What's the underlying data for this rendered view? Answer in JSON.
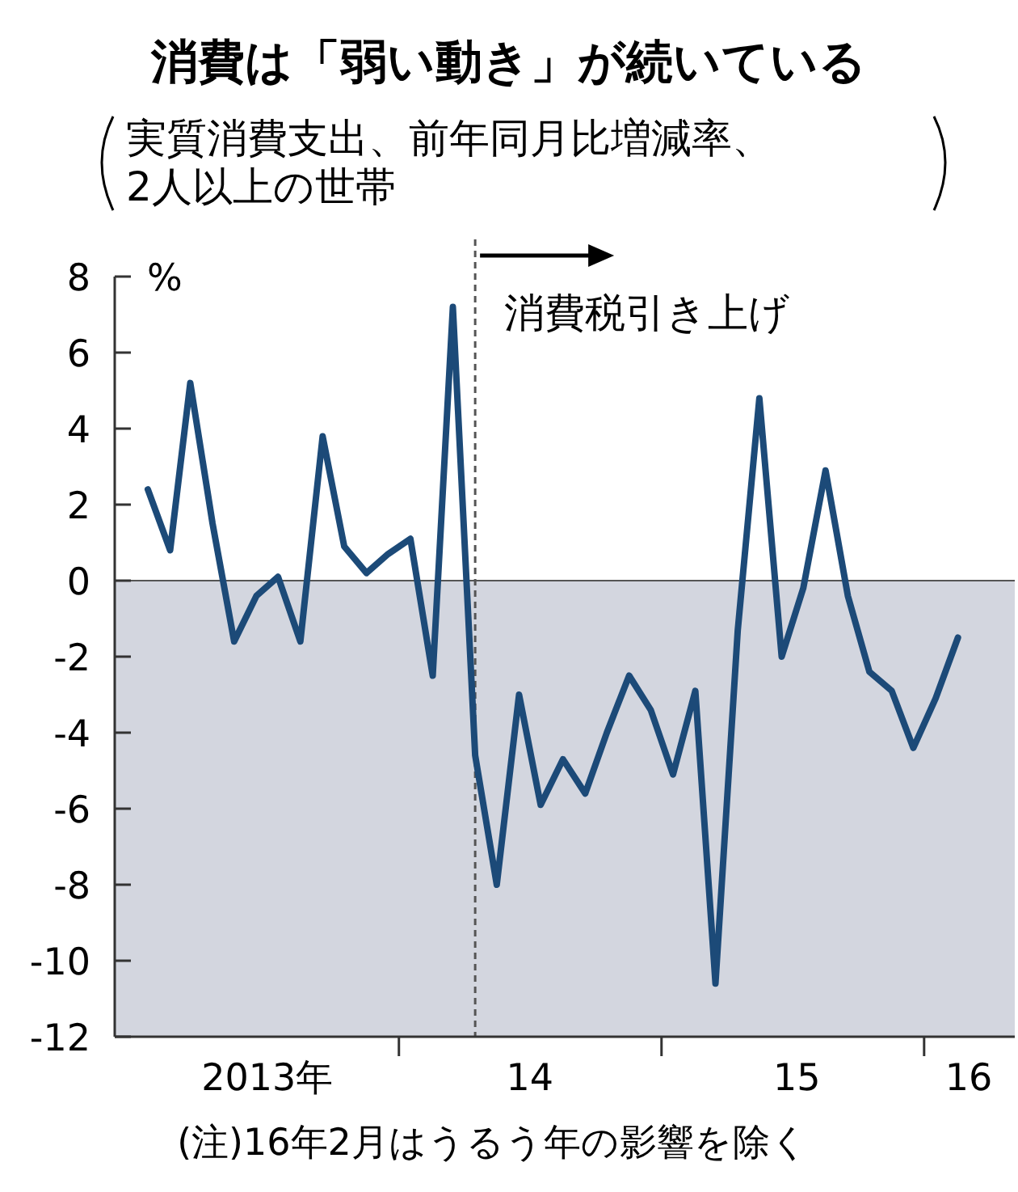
{
  "chart_data": {
    "type": "line",
    "title": "消費は「弱い動き」が続いている",
    "subtitle": "実質消費支出、前年同月比増減率、2人以上の世帯",
    "ylabel": "%",
    "x": [
      "2013-01",
      "2013-02",
      "2013-03",
      "2013-04",
      "2013-05",
      "2013-06",
      "2013-07",
      "2013-08",
      "2013-09",
      "2013-10",
      "2013-11",
      "2013-12",
      "2014-01",
      "2014-02",
      "2014-03",
      "2014-04",
      "2014-05",
      "2014-06",
      "2014-07",
      "2014-08",
      "2014-09",
      "2014-10",
      "2014-11",
      "2014-12",
      "2015-01",
      "2015-02",
      "2015-03",
      "2015-04",
      "2015-05",
      "2015-06",
      "2015-07",
      "2015-08",
      "2015-09",
      "2015-10",
      "2015-11",
      "2015-12",
      "2016-01",
      "2016-02"
    ],
    "series": [
      {
        "color": "#1c4a78",
        "values": [
          2.4,
          0.8,
          5.2,
          1.5,
          -1.6,
          -0.4,
          0.1,
          -1.6,
          3.8,
          0.9,
          0.2,
          0.7,
          1.1,
          -2.5,
          7.2,
          -4.6,
          -8.0,
          -3.0,
          -5.9,
          -4.7,
          -5.6,
          -4.0,
          -2.5,
          -3.4,
          -5.1,
          -2.9,
          -10.6,
          -1.3,
          4.8,
          -2.0,
          -0.2,
          2.9,
          -0.4,
          -2.4,
          -2.9,
          -4.4,
          -3.1,
          -1.5
        ]
      }
    ],
    "xlim": [
      "2012-11-16",
      "2016-04-20"
    ],
    "xticks": [
      {
        "value": "2013-06-16",
        "label": "2013年"
      },
      {
        "value": "2013-12-16",
        "label": null
      },
      {
        "value": "2014-06-16",
        "label": "14"
      },
      {
        "value": "2014-12-16",
        "label": null
      },
      {
        "value": "2015-06-22",
        "label": "15"
      },
      {
        "value": "2015-12-16",
        "label": null
      },
      {
        "value": "2016-02-16",
        "label": "16"
      }
    ],
    "ylim": [
      -12,
      8
    ],
    "yticks": [
      -12,
      -10,
      -8,
      -6,
      -4,
      -2,
      0,
      2,
      4,
      6,
      8
    ],
    "ref_lines": [
      {
        "axis": "x",
        "value": "2014-04-01",
        "label": "消費税引き上げ",
        "line_style": "dashed",
        "color": "#555555"
      }
    ],
    "bands": [
      {
        "axis": "y",
        "from": 0,
        "to": -12,
        "color": "#d3d6df"
      }
    ],
    "annotations": [
      "(注)16年2月はうるう年の影響を除く"
    ],
    "marker": "none",
    "line_style": "solid"
  }
}
